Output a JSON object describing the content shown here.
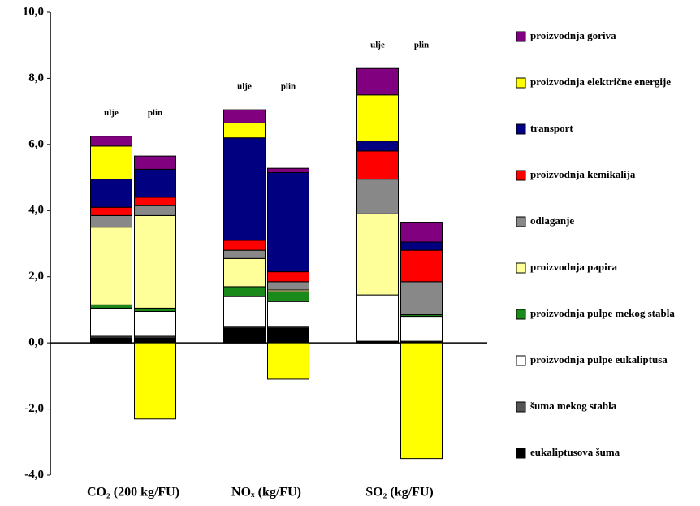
{
  "chart_data": {
    "type": "stacked-bar",
    "groups": [
      "CO₂ (200 kg/FU)",
      "NOₓ (kg/FU)",
      "SO₂ (kg/FU)"
    ],
    "categories": [
      "ulje",
      "plin",
      "ulje",
      "plin",
      "ulje",
      "plin"
    ],
    "ylim": [
      -4,
      10
    ],
    "yticks": [
      {
        "value": -4,
        "label": "-4,0"
      },
      {
        "value": -2,
        "label": "-2,0"
      },
      {
        "value": 0,
        "label": "0,0"
      },
      {
        "value": 2,
        "label": "2,0"
      },
      {
        "value": 4,
        "label": "4,0"
      },
      {
        "value": 6,
        "label": "6,0"
      },
      {
        "value": 8,
        "label": "8,0"
      },
      {
        "value": 10,
        "label": "10,0"
      }
    ],
    "series": [
      {
        "name": "eukaliptusova šuma",
        "color": "#000000",
        "values": [
          0.15,
          0.15,
          0.45,
          0.45,
          0.03,
          0.02
        ]
      },
      {
        "name": "šuma mekog stabla",
        "color": "#555555",
        "values": [
          0.05,
          0.05,
          0.05,
          0.05,
          0.02,
          0.03
        ]
      },
      {
        "name": "proizvodnja pulpe eukaliptusa",
        "color": "#ffffff",
        "values": [
          0.85,
          0.75,
          0.9,
          0.75,
          1.4,
          0.75
        ]
      },
      {
        "name": "proizvodnja pulpe mekog stabla",
        "color": "#1a8a1a",
        "values": [
          0.1,
          0.1,
          0.3,
          0.3,
          0,
          0.05
        ]
      },
      {
        "name": "proizvodnja papira",
        "color": "#ffff99",
        "values": [
          2.35,
          2.8,
          0.85,
          0.05,
          2.45,
          0
        ]
      },
      {
        "name": "odlaganje",
        "color": "#888888",
        "values": [
          0.35,
          0.3,
          0.25,
          0.25,
          1.05,
          1.0
        ]
      },
      {
        "name": "proizvodnja kemikalija",
        "color": "#ff0000",
        "values": [
          0.25,
          0.25,
          0.3,
          0.3,
          0.85,
          0.95
        ]
      },
      {
        "name": "transport",
        "color": "#000080",
        "values": [
          0.85,
          0.85,
          3.1,
          3.0,
          0.3,
          0.25
        ]
      },
      {
        "name": "proizvodnja električne energije",
        "color": "#ffff00",
        "values": [
          1.0,
          -2.3,
          0.45,
          -1.1,
          1.4,
          -3.5
        ]
      },
      {
        "name": "proizvodnja goriva",
        "color": "#800080",
        "values": [
          0.3,
          0.4,
          0.4,
          0.13,
          0.8,
          0.6
        ]
      }
    ]
  }
}
